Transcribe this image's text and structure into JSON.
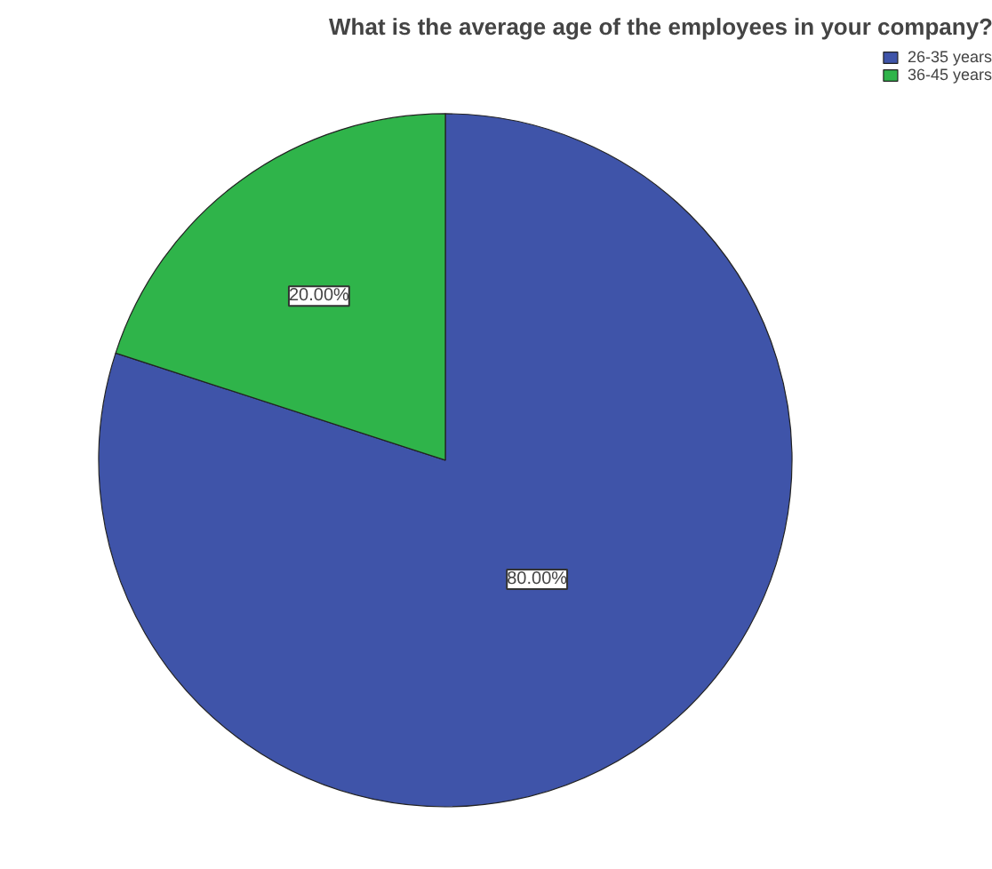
{
  "chart_data": {
    "type": "pie",
    "title": "What is the average age of the employees in your company?",
    "categories": [
      "26-35 years",
      "36-45 years"
    ],
    "values": [
      80,
      20
    ],
    "colors": [
      "#3f54a9",
      "#2fb44a"
    ],
    "value_labels": [
      "80.00%",
      "20.00%"
    ],
    "legend": "top right"
  }
}
